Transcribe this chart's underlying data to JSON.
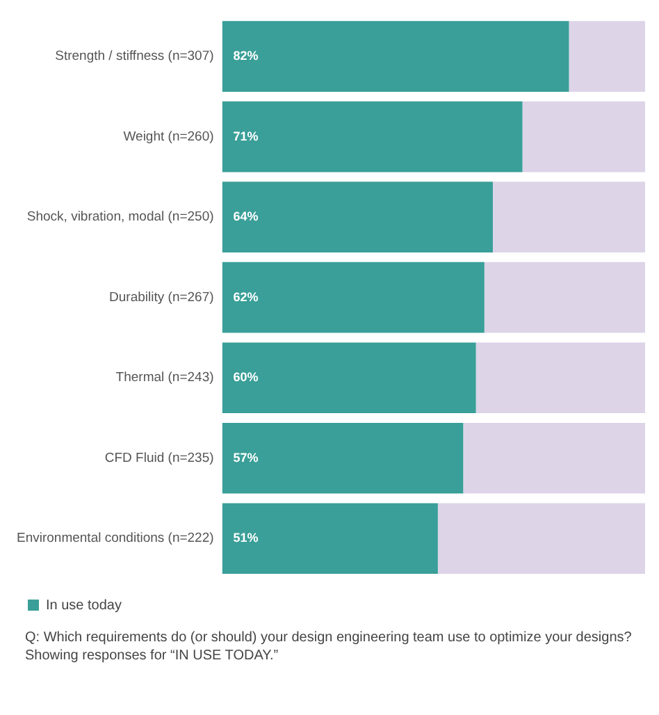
{
  "chart_data": {
    "type": "bar",
    "orientation": "horizontal",
    "stacked": true,
    "categories": [
      "Strength / stiffness (n=307)",
      "Weight (n=260)",
      "Shock, vibration, modal (n=250)",
      "Durability (n=267)",
      "Thermal (n=243)",
      "CFD Fluid (n=235)",
      "Environmental conditions (n=222)"
    ],
    "series": [
      {
        "name": "In use today",
        "color": "#3a9f98",
        "values": [
          82,
          71,
          64,
          62,
          60,
          57,
          51
        ],
        "value_labels": [
          "82%",
          "71%",
          "64%",
          "62%",
          "60%",
          "57%",
          "51%"
        ]
      },
      {
        "color": "#ddd4e8",
        "values": [
          18,
          29,
          36,
          38,
          40,
          43,
          49
        ]
      }
    ],
    "legend": "bottom",
    "grid": false,
    "annotations": [
      "Q: Which requirements do (or should) your design engineering team use to optimize your designs? Showing responses for “IN USE TODAY.”"
    ]
  }
}
